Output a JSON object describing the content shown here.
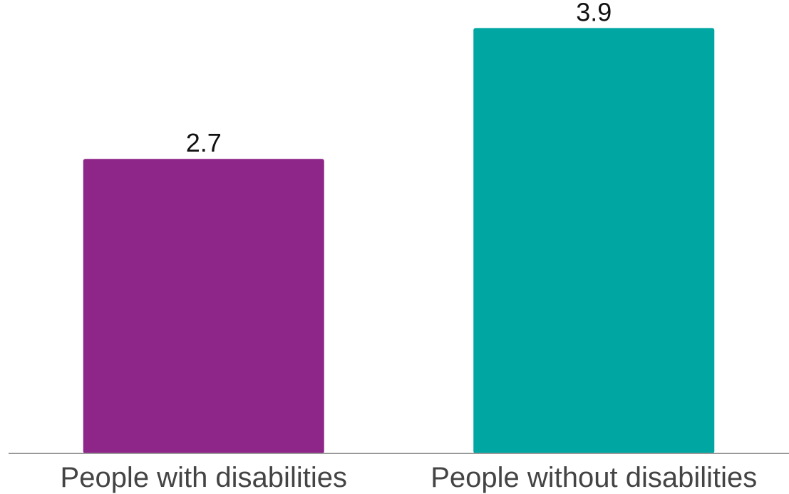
{
  "chart_data": {
    "type": "bar",
    "categories": [
      "People with disabilities",
      "People without disabilities"
    ],
    "values": [
      2.7,
      3.9
    ],
    "data_labels": [
      "2.7",
      "3.9"
    ],
    "colors": [
      "#8e2589",
      "#00a6a1"
    ],
    "baseline_color": "#999999",
    "title": "",
    "xlabel": "",
    "ylabel": "",
    "ylim": [
      0,
      4.0
    ],
    "grid": false
  }
}
